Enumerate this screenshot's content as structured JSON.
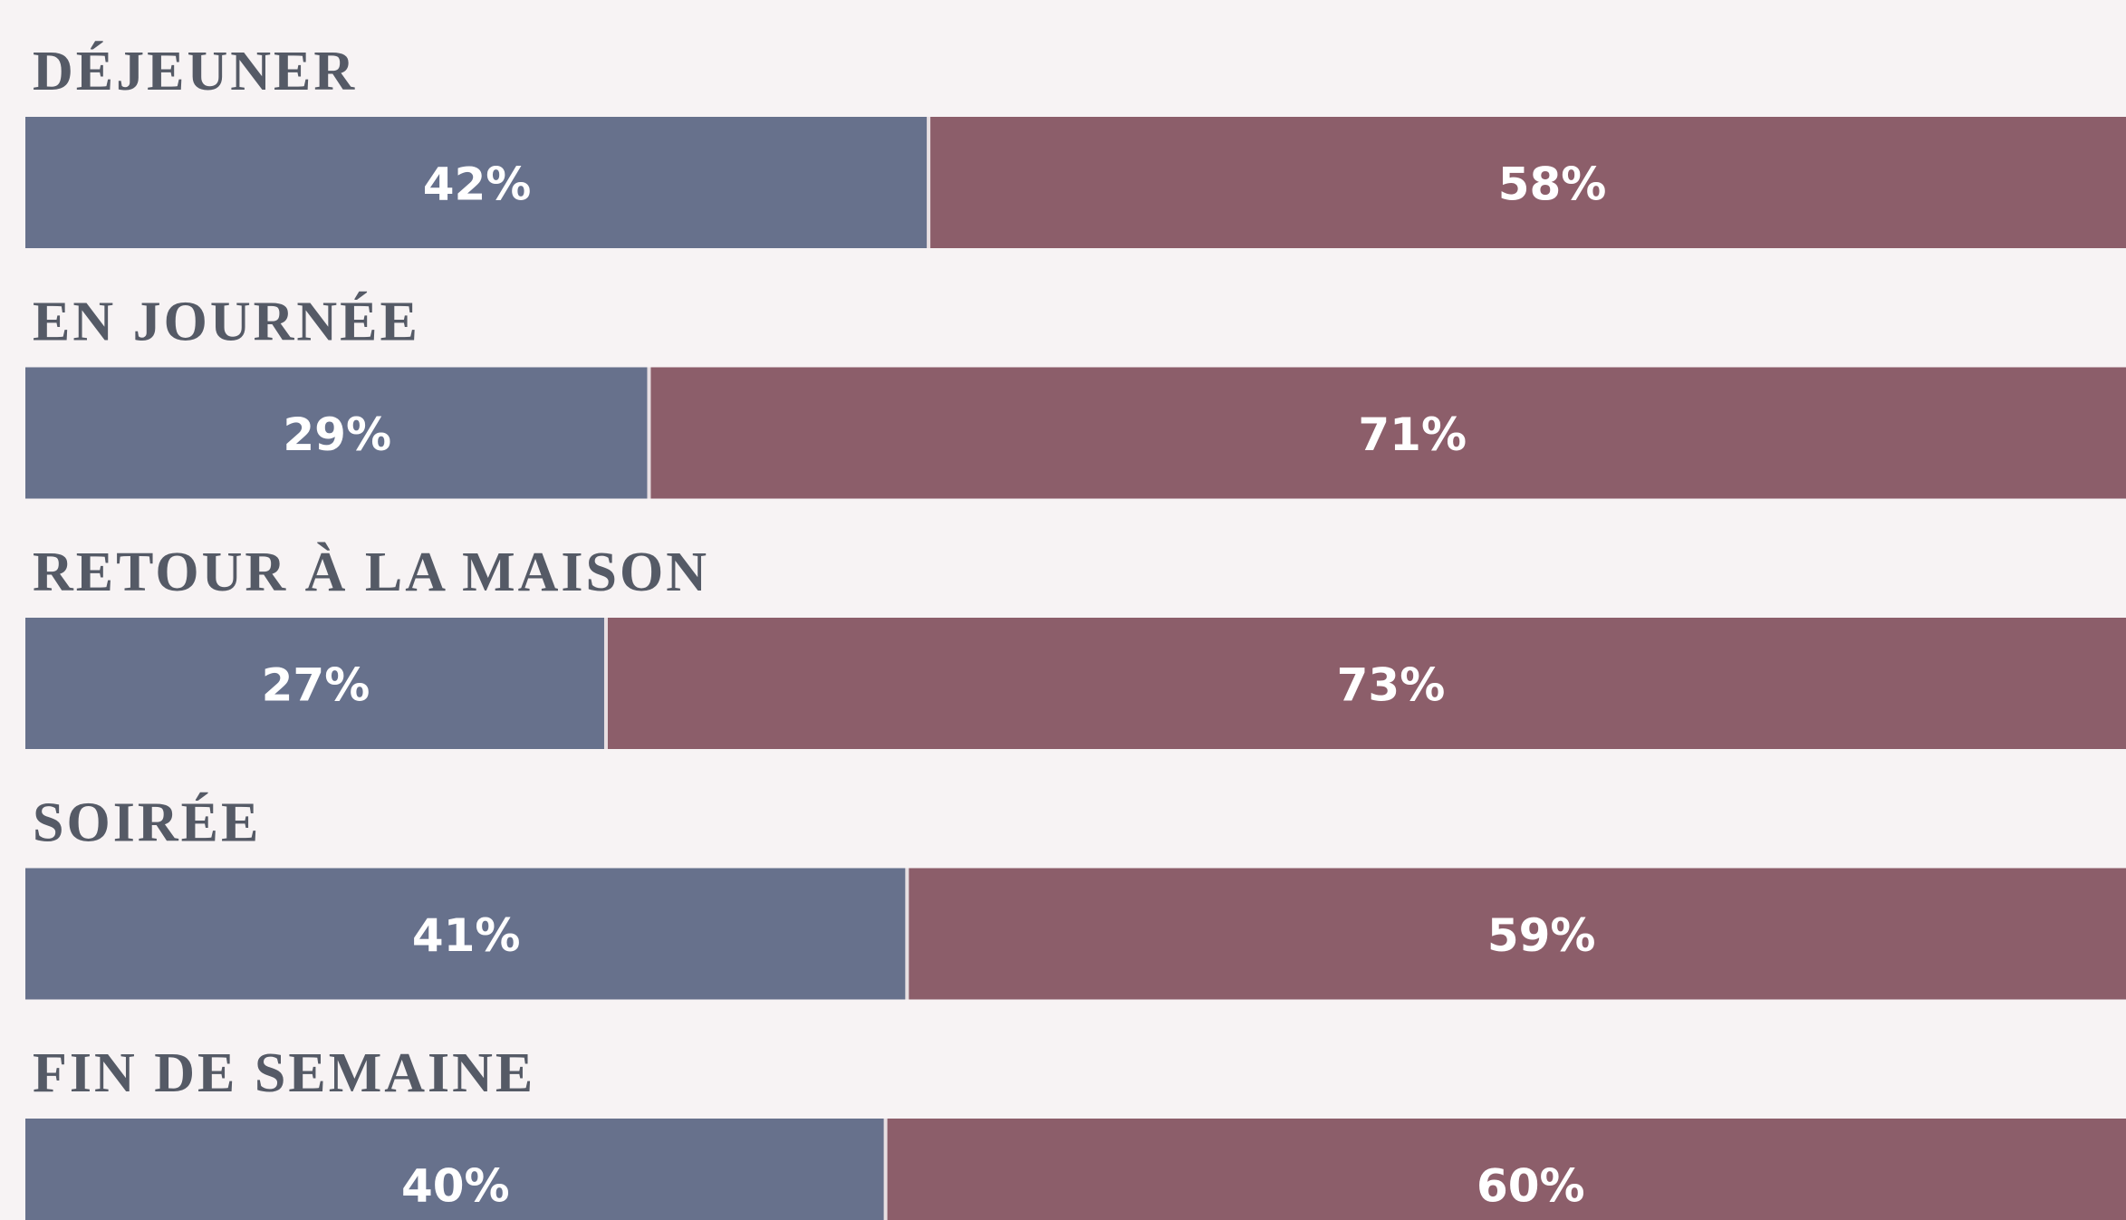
{
  "chart_data": {
    "type": "bar",
    "stacked": true,
    "orientation": "horizontal",
    "categories": [
      "DÉJEUNER",
      "EN JOURNÉE",
      "RETOUR À LA MAISON",
      "SOIRÉE",
      "FIN DE SEMAINE"
    ],
    "series": [
      {
        "color": "#67718c",
        "values": [
          42,
          29,
          27,
          41,
          40
        ],
        "value_labels": [
          "42%",
          "29%",
          "27%",
          "41%",
          "40%"
        ]
      },
      {
        "color": "#8c5e6a",
        "values": [
          58,
          71,
          73,
          59,
          60
        ],
        "value_labels": [
          "58%",
          "71%",
          "73%",
          "59%",
          "60%"
        ]
      }
    ],
    "xlim": [
      0,
      100
    ]
  }
}
